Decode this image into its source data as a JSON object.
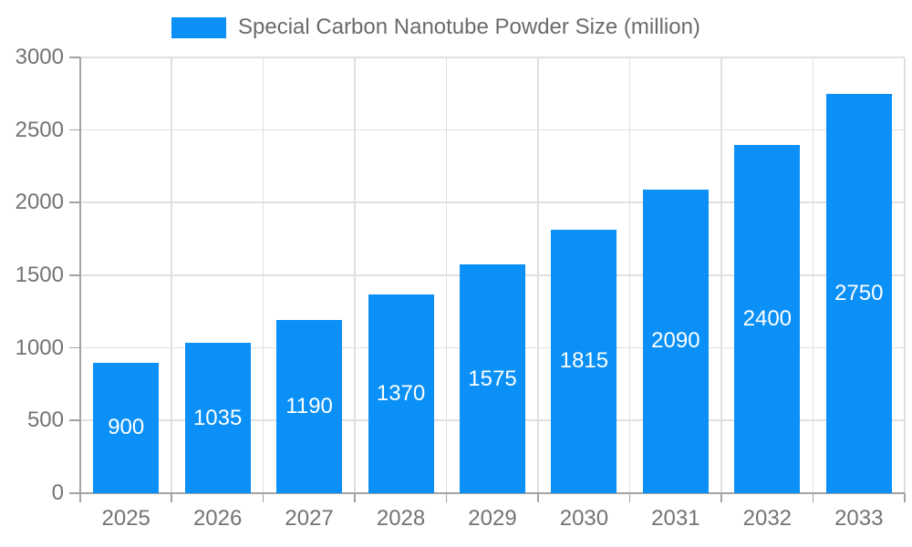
{
  "chart_data": {
    "type": "bar",
    "title": "Special Carbon Nanotube Powder Size (million)",
    "categories": [
      "2025",
      "2026",
      "2027",
      "2028",
      "2029",
      "2030",
      "2031",
      "2032",
      "2033"
    ],
    "series": [
      {
        "name": "Special Carbon Nanotube Powder Size (million)",
        "values": [
          900,
          1035,
          1190,
          1370,
          1575,
          1815,
          2090,
          2400,
          2750
        ]
      }
    ],
    "xlabel": "",
    "ylabel": "",
    "ylim": [
      0,
      3000
    ],
    "yticks": [
      0,
      500,
      1000,
      1500,
      2000,
      2500,
      3000
    ],
    "grid": true,
    "legend_position": "top-center",
    "bar_value_labels": "inside-center",
    "colors": {
      "bar": "#0a90f6",
      "bar_label": "#ffffff",
      "gridline": "#e0e0e0",
      "axis_line": "#a3a3a3",
      "axis_text": "#737373",
      "legend_text": "#6b6b6b",
      "background": "#ffffff"
    }
  }
}
